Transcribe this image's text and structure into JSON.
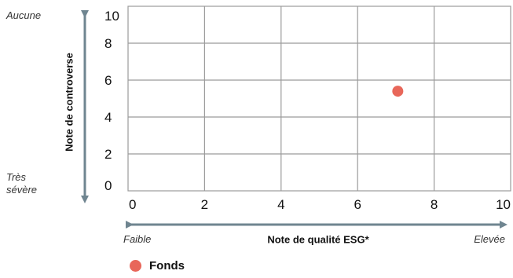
{
  "colors": {
    "axis_arrow": "#6f8590",
    "grid": "#9b9b9b",
    "point": "#e8675a"
  },
  "y_annotations": {
    "top": "Aucune",
    "bottom_line1": "Très",
    "bottom_line2": "sévère"
  },
  "x_annotations": {
    "left": "Faible",
    "right": "Elevée"
  },
  "chart_data": {
    "type": "scatter",
    "xlabel": "Note de qualité ESG*",
    "ylabel": "Note de controverse",
    "xlim": [
      0,
      10
    ],
    "ylim": [
      0,
      10
    ],
    "xticks": [
      "0",
      "2",
      "4",
      "6",
      "8",
      "10"
    ],
    "yticks": [
      "0",
      "2",
      "4",
      "6",
      "8",
      "10"
    ],
    "grid": true,
    "legend_position": "bottom-left",
    "series": [
      {
        "name": "Fonds",
        "x": [
          7.05
        ],
        "y": [
          5.4
        ],
        "color": "#e8675a"
      }
    ]
  }
}
